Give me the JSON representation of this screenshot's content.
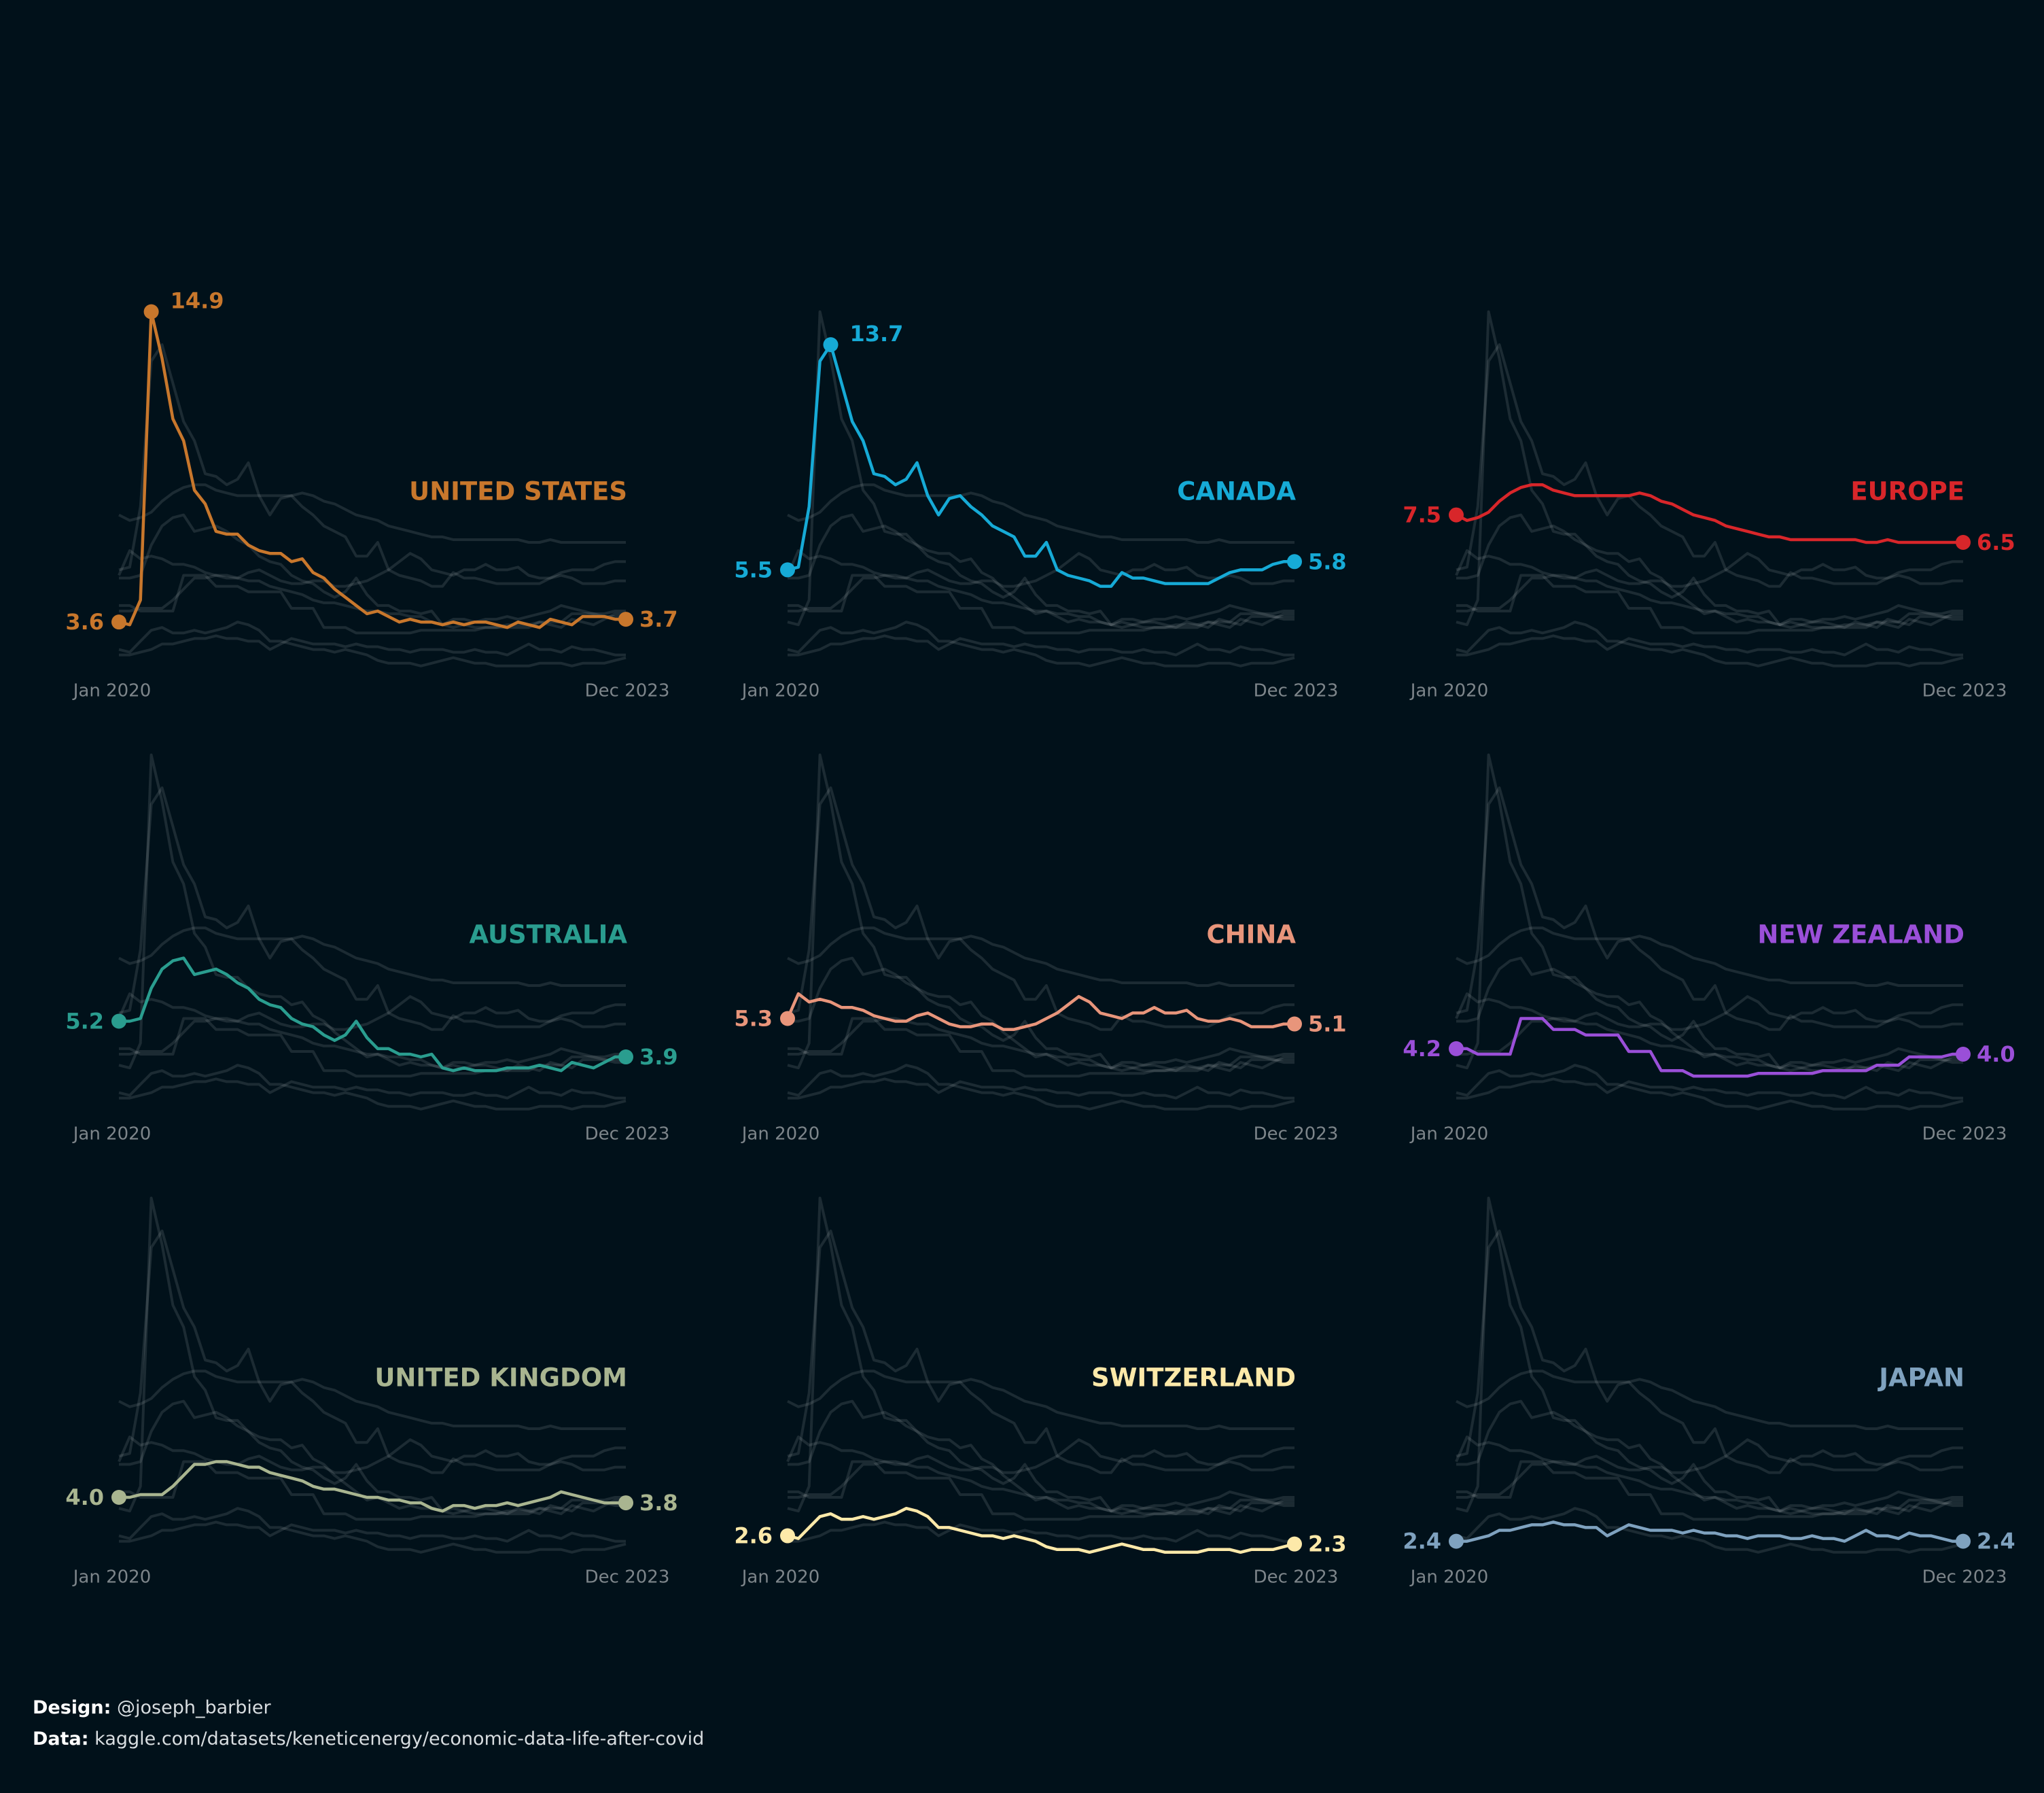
{
  "chart_data": {
    "type": "line",
    "categories": [
      "Jan 2020",
      null,
      null,
      null,
      null,
      null,
      null,
      null,
      null,
      null,
      null,
      null,
      null,
      null,
      null,
      null,
      null,
      null,
      null,
      null,
      null,
      null,
      null,
      null,
      null,
      null,
      null,
      null,
      null,
      null,
      null,
      null,
      null,
      null,
      null,
      null,
      null,
      null,
      null,
      null,
      null,
      null,
      null,
      null,
      null,
      null,
      null,
      "Dec 2023"
    ],
    "ylim": [
      1.5,
      15
    ],
    "series": [
      {
        "name": "UNITED STATES",
        "color": "#c8772c",
        "values": [
          3.6,
          3.5,
          4.4,
          14.9,
          13.2,
          11.0,
          10.2,
          8.4,
          7.9,
          6.9,
          6.8,
          6.8,
          6.4,
          6.2,
          6.1,
          6.1,
          5.8,
          5.9,
          5.4,
          5.2,
          4.8,
          4.5,
          4.2,
          3.9,
          4.0,
          3.8,
          3.6,
          3.7,
          3.6,
          3.6,
          3.5,
          3.6,
          3.5,
          3.6,
          3.6,
          3.5,
          3.4,
          3.6,
          3.5,
          3.4,
          3.7,
          3.6,
          3.5,
          3.8,
          3.8,
          3.8,
          3.7,
          3.7
        ],
        "value_labels": [
          "3.6",
          null,
          null,
          "14.9",
          null,
          null,
          null,
          null,
          null,
          null,
          null,
          null,
          null,
          null,
          null,
          null,
          null,
          null,
          null,
          null,
          null,
          null,
          null,
          null,
          null,
          null,
          null,
          null,
          null,
          null,
          null,
          null,
          null,
          null,
          null,
          null,
          null,
          null,
          null,
          null,
          null,
          null,
          null,
          null,
          null,
          null,
          null,
          "3.7"
        ]
      },
      {
        "name": "CANADA",
        "color": "#16aad6",
        "values": [
          5.5,
          5.6,
          7.8,
          13.1,
          13.7,
          12.3,
          10.9,
          10.2,
          9.0,
          8.9,
          8.6,
          8.8,
          9.4,
          8.2,
          7.5,
          8.1,
          8.2,
          7.8,
          7.5,
          7.1,
          6.9,
          6.7,
          6.0,
          6.0,
          6.5,
          5.5,
          5.3,
          5.2,
          5.1,
          4.9,
          4.9,
          5.4,
          5.2,
          5.2,
          5.1,
          5.0,
          5.0,
          5.0,
          5.0,
          5.0,
          5.2,
          5.4,
          5.5,
          5.5,
          5.5,
          5.7,
          5.8,
          5.8
        ],
        "value_labels": [
          "5.5",
          null,
          null,
          null,
          "13.7",
          null,
          null,
          null,
          null,
          null,
          null,
          null,
          null,
          null,
          null,
          null,
          null,
          null,
          null,
          null,
          null,
          null,
          null,
          null,
          null,
          null,
          null,
          null,
          null,
          null,
          null,
          null,
          null,
          null,
          null,
          null,
          null,
          null,
          null,
          null,
          null,
          null,
          null,
          null,
          null,
          null,
          null,
          "5.8"
        ]
      },
      {
        "name": "EUROPE",
        "color": "#d8262a",
        "values": [
          7.5,
          7.3,
          7.4,
          7.6,
          8.0,
          8.3,
          8.5,
          8.6,
          8.6,
          8.4,
          8.3,
          8.2,
          8.2,
          8.2,
          8.2,
          8.2,
          8.2,
          8.3,
          8.2,
          8.0,
          7.9,
          7.7,
          7.5,
          7.4,
          7.3,
          7.1,
          7.0,
          6.9,
          6.8,
          6.7,
          6.7,
          6.6,
          6.6,
          6.6,
          6.6,
          6.6,
          6.6,
          6.6,
          6.5,
          6.5,
          6.6,
          6.5,
          6.5,
          6.5,
          6.5,
          6.5,
          6.5,
          6.5
        ],
        "value_labels": [
          "7.5",
          null,
          null,
          null,
          null,
          null,
          null,
          null,
          null,
          null,
          null,
          null,
          null,
          null,
          null,
          null,
          null,
          null,
          null,
          null,
          null,
          null,
          null,
          null,
          null,
          null,
          null,
          null,
          null,
          null,
          null,
          null,
          null,
          null,
          null,
          null,
          null,
          null,
          null,
          null,
          null,
          null,
          null,
          null,
          null,
          null,
          null,
          "6.5"
        ]
      },
      {
        "name": "AUSTRALIA",
        "color": "#2a9d8f",
        "values": [
          5.2,
          5.2,
          5.3,
          6.4,
          7.1,
          7.4,
          7.5,
          6.9,
          7.0,
          7.1,
          6.9,
          6.6,
          6.4,
          6.0,
          5.8,
          5.7,
          5.3,
          5.1,
          5.0,
          4.7,
          4.5,
          4.7,
          5.2,
          4.6,
          4.2,
          4.2,
          4.0,
          4.0,
          3.9,
          4.0,
          3.5,
          3.4,
          3.5,
          3.4,
          3.4,
          3.4,
          3.5,
          3.5,
          3.5,
          3.6,
          3.5,
          3.4,
          3.7,
          3.6,
          3.5,
          3.7,
          3.9,
          3.9
        ],
        "value_labels": [
          "5.2",
          null,
          null,
          null,
          null,
          null,
          null,
          null,
          null,
          null,
          null,
          null,
          null,
          null,
          null,
          null,
          null,
          null,
          null,
          null,
          null,
          null,
          null,
          null,
          null,
          null,
          null,
          null,
          null,
          null,
          null,
          null,
          null,
          null,
          null,
          null,
          null,
          null,
          null,
          null,
          null,
          null,
          null,
          null,
          null,
          null,
          null,
          "3.9"
        ]
      },
      {
        "name": "CHINA",
        "color": "#e8957b",
        "values": [
          5.3,
          6.2,
          5.9,
          6.0,
          5.9,
          5.7,
          5.7,
          5.6,
          5.4,
          5.3,
          5.2,
          5.2,
          5.4,
          5.5,
          5.3,
          5.1,
          5.0,
          5.0,
          5.1,
          5.1,
          4.9,
          4.9,
          5.0,
          5.1,
          5.3,
          5.5,
          5.8,
          6.1,
          5.9,
          5.5,
          5.4,
          5.3,
          5.5,
          5.5,
          5.7,
          5.5,
          5.5,
          5.6,
          5.3,
          5.2,
          5.2,
          5.3,
          5.2,
          5.0,
          5.0,
          5.0,
          5.1,
          5.1
        ],
        "value_labels": [
          "5.3",
          null,
          null,
          null,
          null,
          null,
          null,
          null,
          null,
          null,
          null,
          null,
          null,
          null,
          null,
          null,
          null,
          null,
          null,
          null,
          null,
          null,
          null,
          null,
          null,
          null,
          null,
          null,
          null,
          null,
          null,
          null,
          null,
          null,
          null,
          null,
          null,
          null,
          null,
          null,
          null,
          null,
          null,
          null,
          null,
          null,
          null,
          "5.1"
        ]
      },
      {
        "name": "NEW ZEALAND",
        "color": "#9a4fd8",
        "values": [
          4.2,
          4.2,
          4.0,
          4.0,
          4.0,
          4.0,
          5.3,
          5.3,
          5.3,
          4.9,
          4.9,
          4.9,
          4.7,
          4.7,
          4.7,
          4.7,
          4.1,
          4.1,
          4.1,
          3.4,
          3.4,
          3.4,
          3.2,
          3.2,
          3.2,
          3.2,
          3.2,
          3.2,
          3.3,
          3.3,
          3.3,
          3.3,
          3.3,
          3.3,
          3.4,
          3.4,
          3.4,
          3.4,
          3.4,
          3.6,
          3.6,
          3.6,
          3.9,
          3.9,
          3.9,
          3.9,
          4.0,
          4.0
        ],
        "value_labels": [
          "4.2",
          null,
          null,
          null,
          null,
          null,
          null,
          null,
          null,
          null,
          null,
          null,
          null,
          null,
          null,
          null,
          null,
          null,
          null,
          null,
          null,
          null,
          null,
          null,
          null,
          null,
          null,
          null,
          null,
          null,
          null,
          null,
          null,
          null,
          null,
          null,
          null,
          null,
          null,
          null,
          null,
          null,
          null,
          null,
          null,
          null,
          null,
          "4.0"
        ]
      },
      {
        "name": "UNITED KINGDOM",
        "color": "#a9b590",
        "values": [
          4.0,
          4.0,
          4.1,
          4.1,
          4.1,
          4.4,
          4.8,
          5.2,
          5.2,
          5.3,
          5.3,
          5.2,
          5.1,
          5.1,
          4.9,
          4.8,
          4.7,
          4.6,
          4.4,
          4.3,
          4.3,
          4.2,
          4.1,
          4.0,
          4.0,
          3.9,
          3.9,
          3.8,
          3.8,
          3.6,
          3.5,
          3.7,
          3.7,
          3.6,
          3.7,
          3.7,
          3.8,
          3.7,
          3.8,
          3.9,
          4.0,
          4.2,
          4.1,
          4.0,
          3.9,
          3.8,
          3.8,
          3.8
        ],
        "value_labels": [
          "4.0",
          null,
          null,
          null,
          null,
          null,
          null,
          null,
          null,
          null,
          null,
          null,
          null,
          null,
          null,
          null,
          null,
          null,
          null,
          null,
          null,
          null,
          null,
          null,
          null,
          null,
          null,
          null,
          null,
          null,
          null,
          null,
          null,
          null,
          null,
          null,
          null,
          null,
          null,
          null,
          null,
          null,
          null,
          null,
          null,
          null,
          null,
          "3.8"
        ]
      },
      {
        "name": "SWITZERLAND",
        "color": "#fde9a9",
        "values": [
          2.6,
          2.5,
          2.9,
          3.3,
          3.4,
          3.2,
          3.2,
          3.3,
          3.2,
          3.3,
          3.4,
          3.6,
          3.5,
          3.3,
          2.9,
          2.9,
          2.8,
          2.7,
          2.6,
          2.6,
          2.5,
          2.6,
          2.5,
          2.4,
          2.2,
          2.1,
          2.1,
          2.1,
          2.0,
          2.1,
          2.2,
          2.3,
          2.2,
          2.1,
          2.1,
          2.0,
          2.0,
          2.0,
          2.0,
          2.1,
          2.1,
          2.1,
          2.0,
          2.1,
          2.1,
          2.1,
          2.2,
          2.3
        ],
        "value_labels": [
          "2.6",
          null,
          null,
          null,
          null,
          null,
          null,
          null,
          null,
          null,
          null,
          null,
          null,
          null,
          null,
          null,
          null,
          null,
          null,
          null,
          null,
          null,
          null,
          null,
          null,
          null,
          null,
          null,
          null,
          null,
          null,
          null,
          null,
          null,
          null,
          null,
          null,
          null,
          null,
          null,
          null,
          null,
          null,
          null,
          null,
          null,
          null,
          "2.3"
        ]
      },
      {
        "name": "JAPAN",
        "color": "#7fa2bf",
        "values": [
          2.4,
          2.4,
          2.5,
          2.6,
          2.8,
          2.8,
          2.9,
          3.0,
          3.0,
          3.1,
          3.0,
          3.0,
          2.9,
          2.9,
          2.6,
          2.8,
          3.0,
          2.9,
          2.8,
          2.8,
          2.8,
          2.7,
          2.8,
          2.7,
          2.7,
          2.6,
          2.6,
          2.5,
          2.6,
          2.6,
          2.6,
          2.5,
          2.5,
          2.6,
          2.5,
          2.5,
          2.4,
          2.6,
          2.8,
          2.6,
          2.6,
          2.5,
          2.7,
          2.6,
          2.6,
          2.5,
          2.4,
          2.4
        ],
        "value_labels": [
          "2.4",
          null,
          null,
          null,
          null,
          null,
          null,
          null,
          null,
          null,
          null,
          null,
          null,
          null,
          null,
          null,
          null,
          null,
          null,
          null,
          null,
          null,
          null,
          null,
          null,
          null,
          null,
          null,
          null,
          null,
          null,
          null,
          null,
          null,
          null,
          null,
          null,
          null,
          null,
          null,
          null,
          null,
          null,
          null,
          null,
          null,
          null,
          "2.4"
        ]
      }
    ]
  },
  "credits": [
    {
      "label": "Design:",
      "text": "@joseph_barbier"
    },
    {
      "label": "Data:",
      "text": "kaggle.com/datasets/keneticenergy/economic-data-life-after-covid"
    }
  ]
}
